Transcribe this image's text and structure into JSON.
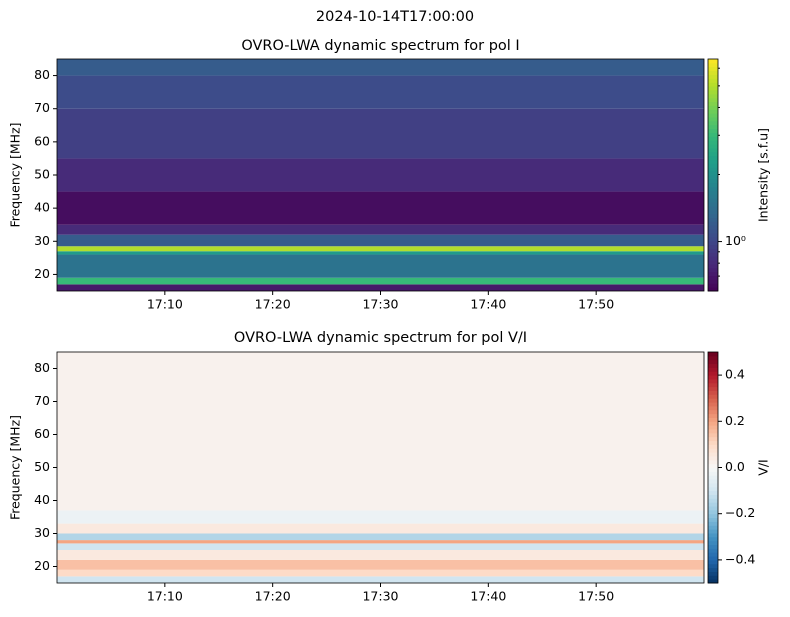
{
  "suptitle": "2024-10-14T17:00:00",
  "chart_data": [
    {
      "type": "heatmap",
      "title": "OVRO-LWA dynamic spectrum for pol I",
      "ylabel": "Frequency [MHz]",
      "colorbar_label": "Intensity [s.f.u]",
      "colormap": "viridis",
      "color_scale": "log",
      "clim": [
        0.6,
        6.6
      ],
      "cticks": [
        {
          "value": 1,
          "label": "10⁰"
        }
      ],
      "cbar_minor_ticks": [
        0.7,
        0.8,
        0.9,
        2,
        3,
        4,
        5,
        6
      ],
      "xlim": [
        "17:00",
        "18:00"
      ],
      "xticks": [
        "17:10",
        "17:20",
        "17:30",
        "17:40",
        "17:50"
      ],
      "ylim": [
        15,
        85
      ],
      "yticks": [
        20,
        30,
        40,
        50,
        60,
        70,
        80
      ],
      "y_edges": [
        15,
        17,
        19,
        26,
        27,
        28.5,
        32,
        35,
        45,
        55,
        70,
        80,
        85
      ],
      "values": [
        0.7,
        3,
        1.5,
        2.2,
        5,
        1.2,
        0.8,
        0.65,
        0.8,
        0.95,
        1.05,
        1.2
      ]
    },
    {
      "type": "heatmap",
      "title": "OVRO-LWA dynamic spectrum for pol V/I",
      "ylabel": "Frequency [MHz]",
      "colorbar_label": "V/I",
      "colormap": "RdBu_r",
      "color_scale": "linear",
      "clim": [
        -0.5,
        0.5
      ],
      "cticks": [
        {
          "value": -0.4,
          "label": "−0.4"
        },
        {
          "value": -0.2,
          "label": "−0.2"
        },
        {
          "value": 0,
          "label": "0.0"
        },
        0.2,
        0.4
      ],
      "xlim": [
        "17:00",
        "18:00"
      ],
      "xticks": [
        "17:10",
        "17:20",
        "17:30",
        "17:40",
        "17:50"
      ],
      "ylim": [
        15,
        85
      ],
      "yticks": [
        20,
        30,
        40,
        50,
        60,
        70,
        80
      ],
      "y_edges": [
        15,
        17,
        19,
        22,
        25,
        27,
        28,
        30,
        33,
        37,
        85
      ],
      "values": [
        -0.1,
        0.1,
        0.15,
        0.05,
        -0.1,
        0.2,
        -0.15,
        0.05,
        -0.03,
        0.02
      ]
    }
  ]
}
